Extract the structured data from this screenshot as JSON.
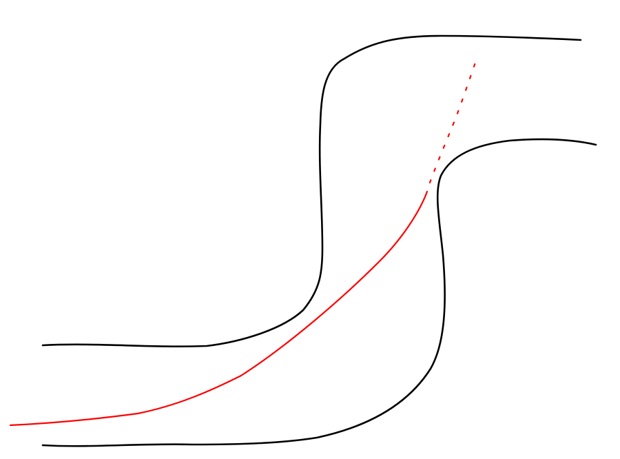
{
  "diagram": {
    "kind": "hand-drawn curved road with trajectory",
    "background_color": "#ffffff",
    "road_edge_color": "#000000",
    "trajectory_color": "#ff0000",
    "elements": [
      {
        "id": "outer-road-edge",
        "style": "solid",
        "color_key": "road_edge_color"
      },
      {
        "id": "inner-road-edge",
        "style": "solid",
        "color_key": "road_edge_color"
      },
      {
        "id": "trajectory-line",
        "style": "solid",
        "color_key": "trajectory_color"
      },
      {
        "id": "trajectory-continuation",
        "style": "dotted",
        "color_key": "trajectory_color"
      }
    ]
  }
}
